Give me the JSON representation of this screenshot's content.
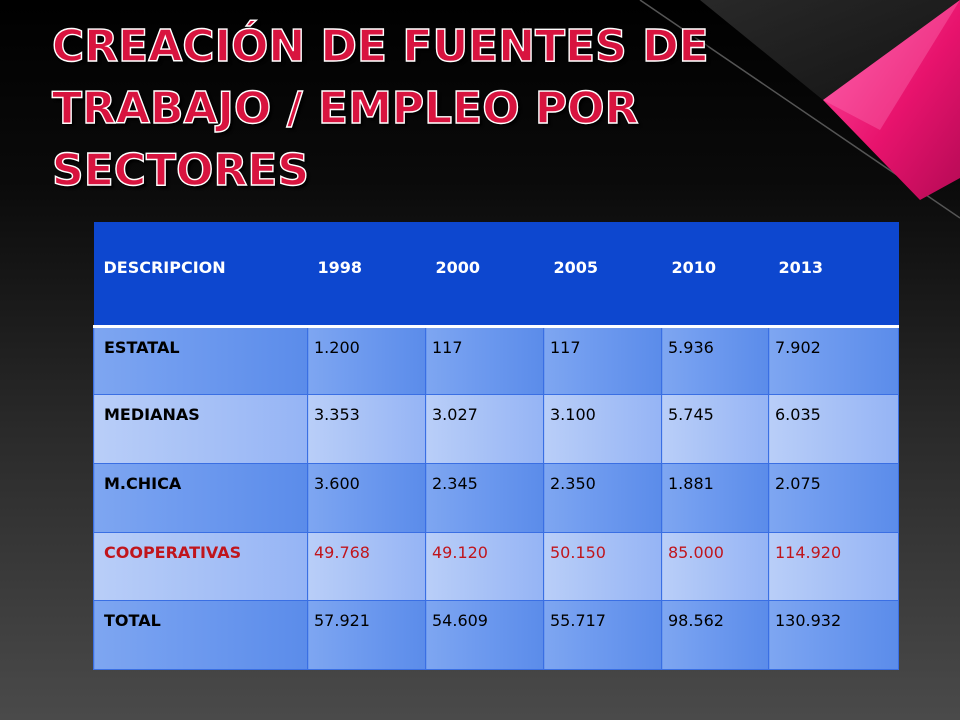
{
  "slide": {
    "title": "CREACIÓN DE FUENTES DE TRABAJO / EMPLEO POR SECTORES"
  },
  "table": {
    "headers": [
      "DESCRIPCION",
      "1998",
      "2000",
      "2005",
      "2010",
      "2013"
    ],
    "rows": [
      {
        "label": "ESTATAL",
        "values": [
          "1.200",
          "117",
          "117",
          "5.936",
          "7.902"
        ]
      },
      {
        "label": "MEDIANAS",
        "values": [
          "3.353",
          "3.027",
          "3.100",
          "5.745",
          "6.035"
        ]
      },
      {
        "label": "M.CHICA",
        "values": [
          "3.600",
          "2.345",
          "2.350",
          "1.881",
          "2.075"
        ]
      },
      {
        "label": "COOPERATIVAS",
        "values": [
          "49.768",
          "49.120",
          "50.150",
          "85.000",
          "114.920"
        ]
      },
      {
        "label": "TOTAL",
        "values": [
          "57.921",
          "54.609",
          "55.717",
          "98.562",
          "130.932"
        ]
      }
    ]
  },
  "colors": {
    "title": "#d8143f",
    "header_bg": "#0d47cf",
    "highlight_text": "#c0151c",
    "accent_pink": "#e8136d"
  }
}
